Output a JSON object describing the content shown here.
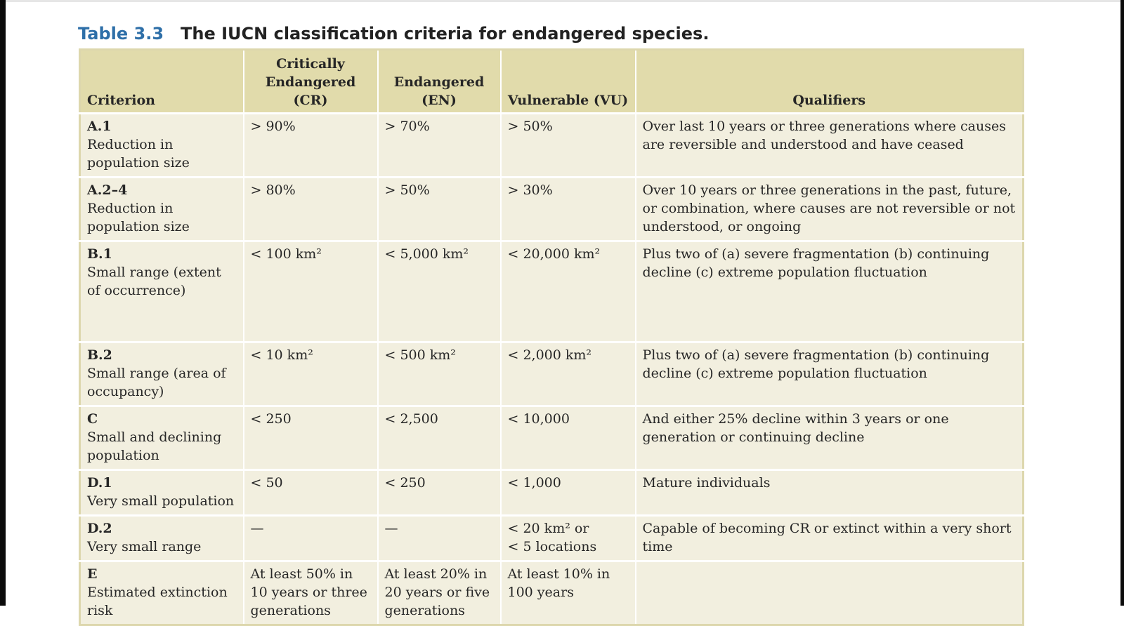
{
  "caption": {
    "table_number": "Table 3.3",
    "title": "The IUCN classification criteria for endangered species."
  },
  "headers": [
    {
      "text": "Criterion"
    },
    {
      "text": "Critically\nEndangered (CR)"
    },
    {
      "text": "Endangered\n(EN)"
    },
    {
      "text": "Vulnerable (VU)"
    },
    {
      "text": "Qualifiers"
    }
  ],
  "rows": [
    {
      "id": "A.1",
      "description": "Reduction in population size",
      "cr": "> 90%",
      "en": "> 70%",
      "vu": "> 50%",
      "qualifiers": "Over last 10 years or three generations where causes are reversible and understood and have ceased"
    },
    {
      "id": "A.2–4",
      "description": "Reduction in population size",
      "cr": "> 80%",
      "en": "> 50%",
      "vu": "> 30%",
      "qualifiers": "Over 10 years or three generations in the past, future, or combination, where causes are not reversible or not understood, or ongoing"
    },
    {
      "id": "B.1",
      "description": "Small range (extent of occurrence)",
      "cr": "< 100 km²",
      "en": "< 5,000 km²",
      "vu": "< 20,000 km²",
      "qualifiers": "Plus two of (a) severe fragmentation (b) continuing decline (c) extreme population fluctuation"
    },
    {
      "id": "B.2",
      "description": "Small range (area of occupancy)",
      "cr": "< 10 km²",
      "en": "< 500 km²",
      "vu": "< 2,000 km²",
      "qualifiers": "Plus two of (a) severe fragmentation (b) continuing decline (c) extreme population fluctuation"
    },
    {
      "id": "C",
      "description": "Small and declining population",
      "cr": "< 250",
      "en": "< 2,500",
      "vu": "< 10,000",
      "qualifiers": "And either 25% decline within 3 years or one generation or continuing decline"
    },
    {
      "id": "D.1",
      "description": "Very small population",
      "cr": "< 50",
      "en": "< 250",
      "vu": "< 1,000",
      "qualifiers": "Mature individuals"
    },
    {
      "id": "D.2",
      "description": "Very small range",
      "cr": "—",
      "en": "—",
      "vu": "< 20 km² or\n< 5 locations",
      "qualifiers": "Capable of becoming CR or extinct within a very short time"
    },
    {
      "id": "E",
      "description": "Estimated extinction risk",
      "cr": "At least 50% in 10 years or three generations",
      "en": "At least 20% in 20 years or five generations",
      "vu": "At least 10% in 100 years",
      "qualifiers": ""
    }
  ],
  "colors": {
    "header_bg": "#e1dbab",
    "body_bg": "#f2efdf",
    "table_number": "#2e6fa8"
  }
}
